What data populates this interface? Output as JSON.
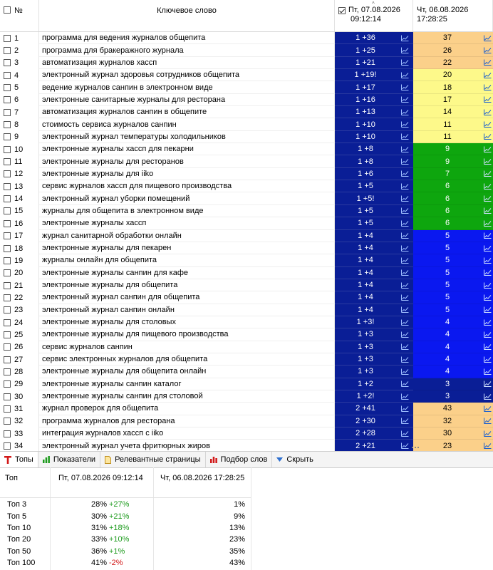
{
  "header": {
    "num_label": "№",
    "keyword_label": "Ключевое слово",
    "period1_line1": "Пт, 07.08.2026",
    "period1_line2": "09:12:14",
    "period2_line1": "Чт, 06.08.2026",
    "period2_line2": "17:28:25"
  },
  "colors": {
    "cell_blue_dark": "#0a1e96",
    "cell_blue": "#0a18f0",
    "cell_orange": "#fbd08a",
    "cell_yellow": "#fdf98a",
    "cell_green": "#0ea60e"
  },
  "rows": [
    {
      "n": "1",
      "kw": "программа для ведения журналов общепита",
      "p1": "1 +36",
      "p2": "37",
      "c": "orange"
    },
    {
      "n": "2",
      "kw": "программа для бракеражного журнала",
      "p1": "1 +25",
      "p2": "26",
      "c": "orange"
    },
    {
      "n": "3",
      "kw": "автоматизация журналов хассп",
      "p1": "1 +21",
      "p2": "22",
      "c": "orange"
    },
    {
      "n": "4",
      "kw": "электронный журнал здоровья сотрудников общепита",
      "p1": "1 +19!",
      "p2": "20",
      "c": "yellow"
    },
    {
      "n": "5",
      "kw": "ведение журналов санпин в электронном виде",
      "p1": "1 +17",
      "p2": "18",
      "c": "yellow"
    },
    {
      "n": "6",
      "kw": "электронные санитарные журналы для ресторана",
      "p1": "1 +16",
      "p2": "17",
      "c": "yellow"
    },
    {
      "n": "7",
      "kw": "автоматизация журналов санпин в общепите",
      "p1": "1 +13",
      "p2": "14",
      "c": "yellow"
    },
    {
      "n": "8",
      "kw": "стоимость сервиса журналов санпин",
      "p1": "1 +10",
      "p2": "11",
      "c": "yellow"
    },
    {
      "n": "9",
      "kw": "электронный журнал температуры холодильников",
      "p1": "1 +10",
      "p2": "11",
      "c": "yellow"
    },
    {
      "n": "10",
      "kw": "электронные журналы хассп для пекарни",
      "p1": "1 +8",
      "p2": "9",
      "c": "green"
    },
    {
      "n": "11",
      "kw": "электронные журналы для ресторанов",
      "p1": "1 +8",
      "p2": "9",
      "c": "green"
    },
    {
      "n": "12",
      "kw": "электронные журналы для iiko",
      "p1": "1 +6",
      "p2": "7",
      "c": "green"
    },
    {
      "n": "13",
      "kw": "сервис журналов хассп для пищевого производства",
      "p1": "1 +5",
      "p2": "6",
      "c": "green"
    },
    {
      "n": "14",
      "kw": "электронный журнал уборки помещений",
      "p1": "1 +5!",
      "p2": "6",
      "c": "green"
    },
    {
      "n": "15",
      "kw": "журналы для общепита в электронном виде",
      "p1": "1 +5",
      "p2": "6",
      "c": "green"
    },
    {
      "n": "16",
      "kw": "электронные журналы хассп",
      "p1": "1 +5",
      "p2": "6",
      "c": "green"
    },
    {
      "n": "17",
      "kw": "журнал санитарной обработки онлайн",
      "p1": "1 +4",
      "p2": "5",
      "c": "blue"
    },
    {
      "n": "18",
      "kw": "электронные журналы для пекарен",
      "p1": "1 +4",
      "p2": "5",
      "c": "blue"
    },
    {
      "n": "19",
      "kw": "журналы онлайн для общепита",
      "p1": "1 +4",
      "p2": "5",
      "c": "blue"
    },
    {
      "n": "20",
      "kw": "электронные журналы санпин для кафе",
      "p1": "1 +4",
      "p2": "5",
      "c": "blue"
    },
    {
      "n": "21",
      "kw": "электронные журналы для общепита",
      "p1": "1 +4",
      "p2": "5",
      "c": "blue"
    },
    {
      "n": "22",
      "kw": "электронный журнал санпин для общепита",
      "p1": "1 +4",
      "p2": "5",
      "c": "blue"
    },
    {
      "n": "23",
      "kw": "электронный журнал санпин онлайн",
      "p1": "1 +4",
      "p2": "5",
      "c": "blue"
    },
    {
      "n": "24",
      "kw": "электронные журналы для столовых",
      "p1": "1 +3!",
      "p2": "4",
      "c": "blue"
    },
    {
      "n": "25",
      "kw": "электронные журналы для пищевого производства",
      "p1": "1 +3",
      "p2": "4",
      "c": "blue"
    },
    {
      "n": "26",
      "kw": "сервис журналов санпин",
      "p1": "1 +3",
      "p2": "4",
      "c": "blue"
    },
    {
      "n": "27",
      "kw": "сервис электронных журналов для общепита",
      "p1": "1 +3",
      "p2": "4",
      "c": "blue"
    },
    {
      "n": "28",
      "kw": "электронные журналы для общепита онлайн",
      "p1": "1 +3",
      "p2": "4",
      "c": "blue"
    },
    {
      "n": "29",
      "kw": "электронные журналы санпин каталог",
      "p1": "1 +2",
      "p2": "3",
      "c": "darkblue"
    },
    {
      "n": "30",
      "kw": "электронные журналы санпин для столовой",
      "p1": "1 +2!",
      "p2": "3",
      "c": "darkblue"
    },
    {
      "n": "31",
      "kw": "журнал проверок для общепита",
      "p1": "2 +41",
      "p2": "43",
      "c": "orange"
    },
    {
      "n": "32",
      "kw": "программа журналов для ресторана",
      "p1": "2 +30",
      "p2": "32",
      "c": "orange"
    },
    {
      "n": "33",
      "kw": "интеграция журналов хассп с iiko",
      "p1": "2 +28",
      "p2": "30",
      "c": "orange"
    },
    {
      "n": "34",
      "kw": "электронный журнал учета фритюрных жиров",
      "p1": "2 +21",
      "p2": "23",
      "c": "orange"
    }
  ],
  "tabs": [
    {
      "label": "Топы",
      "icon": "letter-t-icon"
    },
    {
      "label": "Показатели",
      "icon": "bar-chart-icon"
    },
    {
      "label": "Релевантные страницы",
      "icon": "page-icon"
    },
    {
      "label": "Подбор слов",
      "icon": "bar-chart-red-icon"
    },
    {
      "label": "Скрыть",
      "icon": "arrow-down-icon"
    }
  ],
  "tops": {
    "col_label": "Топ",
    "col_period1": "Пт, 07.08.2026 09:12:14",
    "col_period2": "Чт, 06.08.2026 17:28:25",
    "rows": [
      {
        "label": "Топ 3",
        "p1": "28%",
        "delta": "+27%",
        "p2": "1%",
        "neg": false
      },
      {
        "label": "Топ 5",
        "p1": "30%",
        "delta": "+21%",
        "p2": "9%",
        "neg": false
      },
      {
        "label": "Топ 10",
        "p1": "31%",
        "delta": "+18%",
        "p2": "13%",
        "neg": false
      },
      {
        "label": "Топ 20",
        "p1": "33%",
        "delta": "+10%",
        "p2": "23%",
        "neg": false
      },
      {
        "label": "Топ 50",
        "p1": "36%",
        "delta": "+1%",
        "p2": "35%",
        "neg": false
      },
      {
        "label": "Топ 100",
        "p1": "41%",
        "delta": "-2%",
        "p2": "43%",
        "neg": true
      }
    ]
  }
}
